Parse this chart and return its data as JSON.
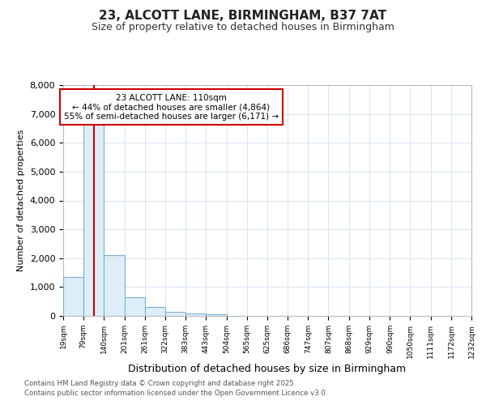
{
  "title1": "23, ALCOTT LANE, BIRMINGHAM, B37 7AT",
  "title2": "Size of property relative to detached houses in Birmingham",
  "xlabel": "Distribution of detached houses by size in Birmingham",
  "ylabel": "Number of detached properties",
  "bins": [
    "19sqm",
    "79sqm",
    "140sqm",
    "201sqm",
    "261sqm",
    "322sqm",
    "383sqm",
    "443sqm",
    "504sqm",
    "565sqm",
    "625sqm",
    "686sqm",
    "747sqm",
    "807sqm",
    "868sqm",
    "929sqm",
    "990sqm",
    "1050sqm",
    "1111sqm",
    "1172sqm",
    "1232sqm"
  ],
  "bin_edges": [
    19,
    79,
    140,
    201,
    261,
    322,
    383,
    443,
    504,
    565,
    625,
    686,
    747,
    807,
    868,
    929,
    990,
    1050,
    1111,
    1172,
    1232
  ],
  "values": [
    1350,
    6700,
    2100,
    650,
    320,
    150,
    80,
    50,
    5,
    3,
    2,
    0,
    0,
    0,
    0,
    0,
    0,
    0,
    0,
    0
  ],
  "bar_color": "#ddeef8",
  "bar_edge_color": "#7ab0d0",
  "grid_color": "#d0e0ee",
  "vline_x": 110,
  "vline_color": "#cc0000",
  "annotation_line1": "23 ALCOTT LANE: 110sqm",
  "annotation_line2": "← 44% of detached houses are smaller (4,864)",
  "annotation_line3": "55% of semi-detached houses are larger (6,171) →",
  "annotation_border_color": "#cc0000",
  "ylim_max": 8000,
  "yticks": [
    0,
    1000,
    2000,
    3000,
    4000,
    5000,
    6000,
    7000,
    8000
  ],
  "footnote1": "Contains HM Land Registry data © Crown copyright and database right 2025.",
  "footnote2": "Contains public sector information licensed under the Open Government Licence v3.0.",
  "bg_color": "#ffffff"
}
